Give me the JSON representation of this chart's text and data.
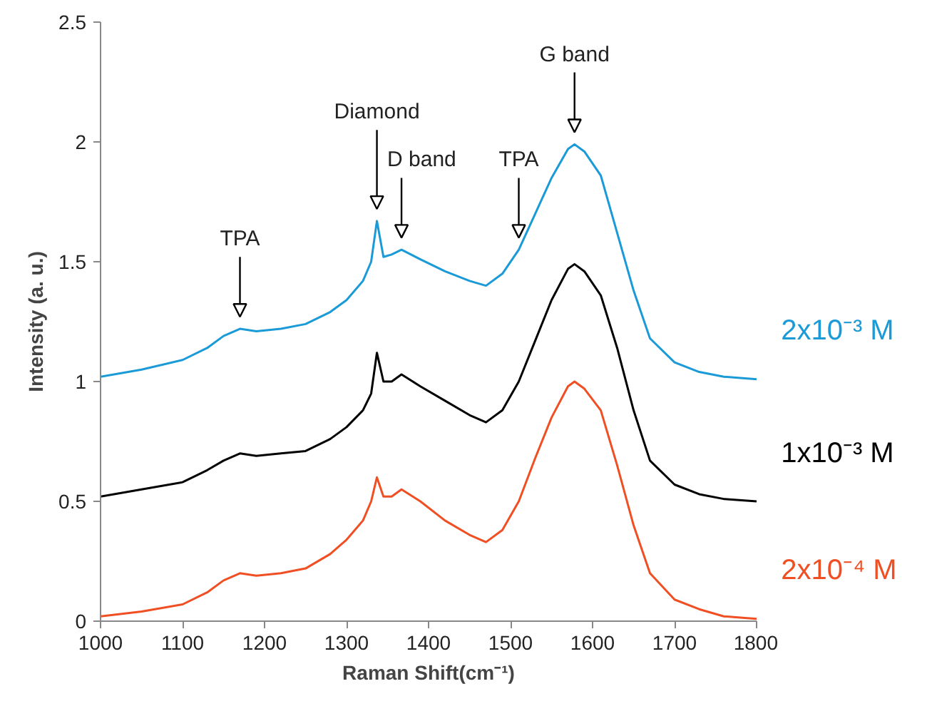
{
  "chart_data": {
    "type": "line",
    "xlabel": "Raman Shift(cm⁻¹)",
    "ylabel": "Intensity (a. u.)",
    "x": [
      1000,
      1050,
      1100,
      1130,
      1150,
      1170,
      1190,
      1220,
      1250,
      1280,
      1300,
      1320,
      1330,
      1337,
      1345,
      1355,
      1367,
      1390,
      1420,
      1450,
      1470,
      1490,
      1510,
      1530,
      1550,
      1570,
      1578,
      1590,
      1610,
      1630,
      1650,
      1670,
      1700,
      1730,
      1760,
      1800
    ],
    "series": [
      {
        "name": "2x10⁻³ M",
        "color": "#1a9ad6",
        "values": [
          1.02,
          1.05,
          1.09,
          1.14,
          1.19,
          1.22,
          1.21,
          1.22,
          1.24,
          1.29,
          1.34,
          1.42,
          1.5,
          1.67,
          1.52,
          1.53,
          1.55,
          1.51,
          1.46,
          1.42,
          1.4,
          1.45,
          1.55,
          1.7,
          1.85,
          1.97,
          1.99,
          1.96,
          1.86,
          1.62,
          1.38,
          1.18,
          1.08,
          1.04,
          1.02,
          1.01
        ]
      },
      {
        "name": "1x10⁻³ M",
        "color": "#000000",
        "values": [
          0.52,
          0.55,
          0.58,
          0.63,
          0.67,
          0.7,
          0.69,
          0.7,
          0.71,
          0.76,
          0.81,
          0.88,
          0.95,
          1.12,
          1.0,
          1.0,
          1.03,
          0.98,
          0.92,
          0.86,
          0.83,
          0.88,
          1.0,
          1.17,
          1.34,
          1.47,
          1.49,
          1.46,
          1.36,
          1.14,
          0.88,
          0.67,
          0.57,
          0.53,
          0.51,
          0.5
        ]
      },
      {
        "name": "2x10⁻⁴ M",
        "color": "#f04e23",
        "values": [
          0.02,
          0.04,
          0.07,
          0.12,
          0.17,
          0.2,
          0.19,
          0.2,
          0.22,
          0.28,
          0.34,
          0.42,
          0.5,
          0.6,
          0.52,
          0.52,
          0.55,
          0.5,
          0.42,
          0.36,
          0.33,
          0.38,
          0.5,
          0.68,
          0.85,
          0.98,
          1.0,
          0.97,
          0.88,
          0.65,
          0.4,
          0.2,
          0.09,
          0.05,
          0.02,
          0.01
        ]
      }
    ],
    "xlim": [
      1000,
      1800
    ],
    "xticks": [
      1000,
      1100,
      1200,
      1300,
      1400,
      1500,
      1600,
      1700,
      1800
    ],
    "ylim": [
      0,
      2.5
    ],
    "yticks": [
      0,
      0.5,
      1,
      1.5,
      2,
      2.5
    ],
    "grid": false,
    "legend": false,
    "marker": "none",
    "line_style": "solid",
    "annotations": [
      {
        "text": "TPA",
        "x": 1170,
        "y": 1.22
      },
      {
        "text": "Diamond",
        "x": 1337,
        "y": 1.67
      },
      {
        "text": "D band",
        "x": 1367,
        "y": 1.55
      },
      {
        "text": "TPA",
        "x": 1510,
        "y": 1.55
      },
      {
        "text": "G band",
        "x": 1578,
        "y": 1.99
      }
    ]
  }
}
